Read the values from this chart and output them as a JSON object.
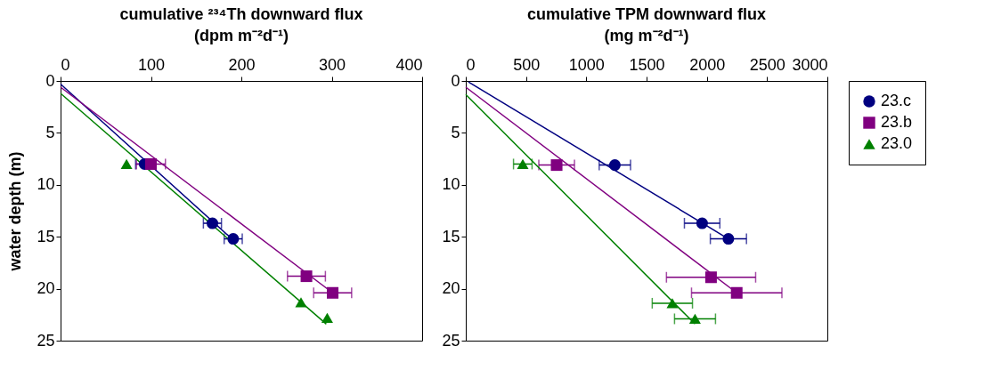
{
  "chart_data": [
    {
      "type": "scatter",
      "title": "cumulative ²³⁴Th downward flux\n(dpm m⁻²d⁻¹)",
      "ylabel": "water depth (m)",
      "xlim": [
        0,
        400
      ],
      "xticks": [
        0,
        100,
        200,
        300,
        400
      ],
      "ylim": [
        25,
        0
      ],
      "yticks": [
        0,
        5,
        10,
        15,
        20,
        25
      ],
      "grid": false,
      "series": [
        {
          "color": "#000080",
          "marker": "circle",
          "x": [
            93,
            168,
            191
          ],
          "values": [
            8,
            13.7,
            15.2
          ],
          "xerrors": [
            10,
            10,
            10
          ]
        },
        {
          "color": "#800080",
          "marker": "square",
          "x": [
            100,
            272,
            301
          ],
          "values": [
            8,
            18.8,
            20.4
          ],
          "xerrors": [
            16,
            21,
            21
          ]
        },
        {
          "color": "#008000",
          "marker": "triangle",
          "x": [
            73,
            266,
            295
          ],
          "values": [
            8,
            21.3,
            22.8
          ]
        },
        {
          "type": "line",
          "color": "#000080",
          "x": [
            0,
            192
          ],
          "values": [
            0.3,
            15.4
          ]
        },
        {
          "type": "line",
          "color": "#800080",
          "x": [
            0,
            301
          ],
          "values": [
            0.6,
            20.4
          ]
        },
        {
          "type": "line",
          "color": "#008000",
          "x": [
            0,
            294
          ],
          "values": [
            1.2,
            23.4
          ]
        }
      ]
    },
    {
      "type": "scatter",
      "title": "cumulative TPM downward flux\n(mg m⁻²d⁻¹)",
      "xlim": [
        0,
        3000
      ],
      "xticks": [
        0,
        500,
        1000,
        1500,
        2000,
        2500,
        3000
      ],
      "ylim": [
        25,
        0
      ],
      "yticks": [
        0,
        5,
        10,
        15,
        20,
        25
      ],
      "grid": false,
      "legend": "right",
      "series": [
        {
          "name": "23.c",
          "color": "#000080",
          "marker": "circle",
          "x": [
            1237,
            1961,
            2179
          ],
          "values": [
            8.1,
            13.7,
            15.2
          ],
          "xerrors": [
            130,
            147,
            150
          ]
        },
        {
          "name": "23.b",
          "color": "#800080",
          "marker": "square",
          "x": [
            754,
            2035,
            2248
          ],
          "values": [
            8.1,
            18.9,
            20.4
          ],
          "xerrors": [
            148,
            370,
            375
          ]
        },
        {
          "name": "23.0",
          "color": "#008000",
          "marker": "triangle",
          "x": [
            473,
            1714,
            1902
          ],
          "values": [
            8,
            21.4,
            22.9
          ],
          "xerrors": [
            77,
            167,
            170
          ]
        },
        {
          "type": "line",
          "color": "#000080",
          "x": [
            22,
            2179
          ],
          "values": [
            0.1,
            15.2
          ]
        },
        {
          "type": "line",
          "color": "#800080",
          "x": [
            0,
            2248
          ],
          "values": [
            0.6,
            20.4
          ]
        },
        {
          "type": "line",
          "color": "#008000",
          "x": [
            0,
            1902
          ],
          "values": [
            1.3,
            23.4
          ]
        }
      ]
    }
  ]
}
